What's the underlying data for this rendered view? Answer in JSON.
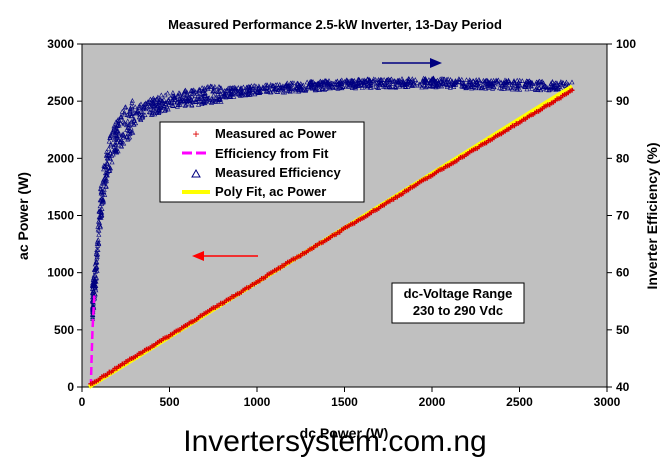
{
  "chart_data": {
    "type": "scatter",
    "title": "Measured Performance 2.5-kW Inverter, 13-Day Period",
    "xlabel": "dc Power (W)",
    "ylabel": "ac Power (W)",
    "y2label": "Inverter Efficiency (%)",
    "xlim": [
      0,
      3000
    ],
    "ylim": [
      0,
      3000
    ],
    "y2lim": [
      40,
      100
    ],
    "xticks": [
      0,
      500,
      1000,
      1500,
      2000,
      2500,
      3000
    ],
    "yticks": [
      0,
      500,
      1000,
      1500,
      2000,
      2500,
      3000
    ],
    "y2ticks": [
      40,
      50,
      60,
      70,
      80,
      90,
      100
    ],
    "grid": false,
    "plot_background": "#c0c0c0",
    "legend_position": "upper-left-inside",
    "legend": [
      {
        "label": "Measured ac Power",
        "marker": "plus",
        "color": "#dd0000"
      },
      {
        "label": "Efficiency from Fit",
        "marker": "dash-line",
        "color": "#ff00ff"
      },
      {
        "label": "Measured Efficiency",
        "marker": "triangle",
        "color": "#000080"
      },
      {
        "label": "Poly Fit, ac Power",
        "marker": "line",
        "color": "#ffff00"
      }
    ],
    "series": [
      {
        "name": "Measured ac Power",
        "axis": "left",
        "color": "#dd0000",
        "x": [
          50,
          150,
          300,
          500,
          700,
          900,
          1100,
          1300,
          1500,
          1700,
          1900,
          2100,
          2300,
          2500,
          2700,
          2800
        ],
        "y": [
          25,
          120,
          265,
          450,
          640,
          825,
          1015,
          1200,
          1385,
          1570,
          1760,
          1945,
          2130,
          2315,
          2500,
          2600
        ]
      },
      {
        "name": "Poly Fit, ac Power",
        "axis": "left",
        "color": "#ffff00",
        "x": [
          40,
          2800
        ],
        "y": [
          0,
          2630
        ]
      },
      {
        "name": "Measured Efficiency",
        "axis": "right",
        "color": "#000080",
        "x": [
          60,
          80,
          100,
          120,
          150,
          200,
          250,
          300,
          400,
          500,
          700,
          1000,
          1500,
          2000,
          2500,
          2800
        ],
        "y": [
          55,
          60,
          70,
          75,
          80,
          84,
          86,
          87.5,
          89,
          90,
          91,
          92,
          93,
          93.2,
          92.8,
          92.5
        ]
      },
      {
        "name": "Efficiency from Fit",
        "axis": "right",
        "color": "#ff00ff",
        "x": [
          50,
          55,
          60,
          70
        ],
        "y": [
          40,
          45,
          50,
          56
        ]
      }
    ],
    "annotations": [
      {
        "text": "dc-Voltage Range",
        "kind": "box"
      },
      {
        "text": "230 to 290 Vdc",
        "kind": "box"
      }
    ],
    "arrows": [
      {
        "direction": "right",
        "color": "#000080",
        "points_to": "right-axis"
      },
      {
        "direction": "left",
        "color": "#ff0000",
        "points_to": "left-axis"
      }
    ]
  },
  "watermark": "Invertersystem.com.ng"
}
